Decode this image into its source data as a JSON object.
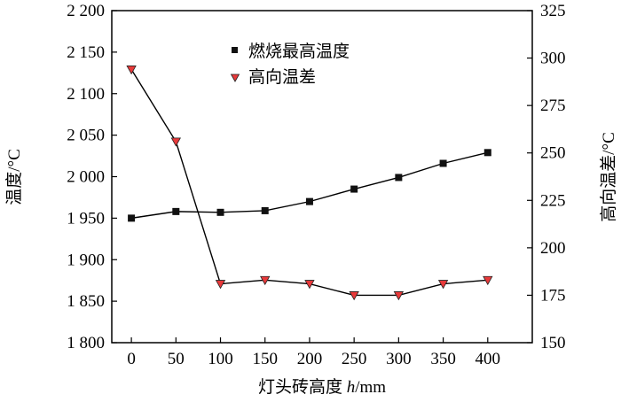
{
  "chart_data": {
    "type": "line",
    "xlabel": "灯头砖高度 h/mm",
    "xlabel_parts": {
      "prefix": "灯头砖高度 ",
      "italic": "h",
      "suffix": "/mm"
    },
    "ylabel": "温度/°C",
    "y2label": "高向温差/°C",
    "x": [
      0,
      50,
      100,
      150,
      200,
      250,
      300,
      350,
      400
    ],
    "xticks": [
      0,
      50,
      100,
      150,
      200,
      250,
      300,
      350,
      400
    ],
    "xtick_labels": [
      "0",
      "50",
      "100",
      "150",
      "200",
      "250",
      "300",
      "350",
      "400"
    ],
    "xlim": [
      -22,
      450
    ],
    "ylim": [
      1800,
      2200
    ],
    "yticks": [
      1800,
      1850,
      1900,
      1950,
      2000,
      2050,
      2100,
      2150,
      2200
    ],
    "ytick_labels": [
      "1 800",
      "1 850",
      "1 900",
      "1 950",
      "2 000",
      "2 050",
      "2 100",
      "2 150",
      "2 200"
    ],
    "y2lim": [
      150,
      325
    ],
    "y2ticks": [
      150,
      175,
      200,
      225,
      250,
      275,
      300,
      325
    ],
    "y2tick_labels": [
      "150",
      "175",
      "200",
      "225",
      "250",
      "275",
      "300",
      "325"
    ],
    "grid": false,
    "legend_placement": "top-center",
    "series": [
      {
        "name": "燃烧最高温度",
        "axis": "left",
        "marker": "square",
        "color": "#111111",
        "values": [
          1950,
          1958,
          1957,
          1959,
          1970,
          1985,
          1999,
          2016,
          2029
        ]
      },
      {
        "name": "高向温差",
        "axis": "right",
        "marker": "triangle-down",
        "color": "#e8393a",
        "values": [
          294,
          256,
          181,
          183,
          181,
          175,
          175,
          181,
          183
        ]
      }
    ]
  }
}
